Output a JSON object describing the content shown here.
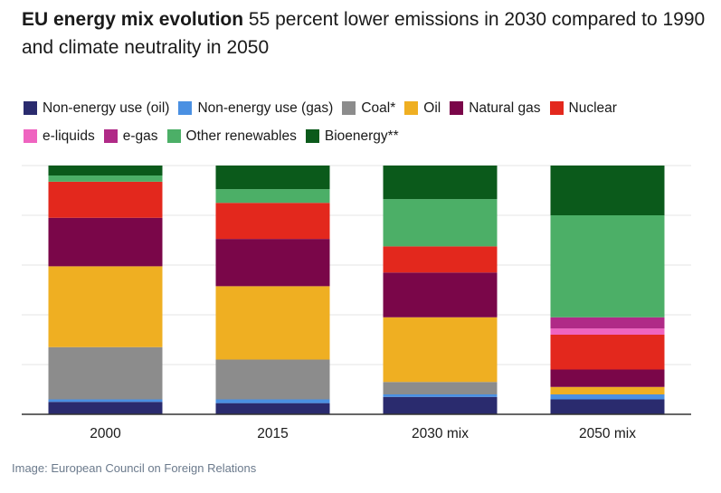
{
  "title": {
    "bold": "EU energy mix evolution",
    "rest": "55 percent lower emissions in 2030 compared to 1990 and climate neutrality in 2050"
  },
  "legend": {
    "row1": [
      {
        "label": "Non-energy use (oil)",
        "color": "#2a2b6e"
      },
      {
        "label": "Non-energy use (gas)",
        "color": "#4a90e2"
      },
      {
        "label": "Coal*",
        "color": "#8c8c8c"
      },
      {
        "label": "Oil",
        "color": "#efaf22"
      },
      {
        "label": "Natural gas",
        "color": "#7a0649"
      },
      {
        "label": "Nuclear",
        "color": "#e3281d"
      }
    ],
    "row2": [
      {
        "label": "e-liquids",
        "color": "#ef64c0"
      },
      {
        "label": "e-gas",
        "color": "#b02a87"
      },
      {
        "label": "Other renewables",
        "color": "#4caf67"
      },
      {
        "label": "Bioenergy**",
        "color": "#0b5a1b"
      }
    ]
  },
  "chart_data": {
    "type": "bar",
    "stacked": true,
    "normalized": true,
    "title": "",
    "xlabel": "",
    "ylabel": "",
    "ylim": [
      0,
      100
    ],
    "grid": true,
    "categories": [
      "2000",
      "2015",
      "2030 mix",
      "2050 mix"
    ],
    "series": [
      {
        "name": "Non-energy use (oil)",
        "color": "#2a2b6e",
        "values": [
          5,
          4.5,
          7,
          6
        ]
      },
      {
        "name": "Non-energy use (gas)",
        "color": "#4a90e2",
        "values": [
          1,
          1.5,
          1,
          2
        ]
      },
      {
        "name": "Coal*",
        "color": "#8c8c8c",
        "values": [
          21,
          16,
          5,
          0
        ]
      },
      {
        "name": "Oil",
        "color": "#efaf22",
        "values": [
          32.5,
          29.5,
          26,
          3
        ]
      },
      {
        "name": "Natural gas",
        "color": "#7a0649",
        "values": [
          19.5,
          19,
          18,
          7
        ]
      },
      {
        "name": "Nuclear",
        "color": "#e3281d",
        "values": [
          14.5,
          14.5,
          10.5,
          14
        ]
      },
      {
        "name": "e-liquids",
        "color": "#ef64c0",
        "values": [
          0,
          0,
          0,
          2.5
        ]
      },
      {
        "name": "e-gas",
        "color": "#b02a87",
        "values": [
          0,
          0,
          0,
          4.5
        ]
      },
      {
        "name": "Other renewables",
        "color": "#4caf67",
        "values": [
          2.5,
          5.5,
          19,
          41
        ]
      },
      {
        "name": "Bioenergy**",
        "color": "#0b5a1b",
        "values": [
          4,
          9.5,
          13.5,
          20
        ]
      }
    ]
  },
  "footer": "Image: European Council on Foreign Relations"
}
